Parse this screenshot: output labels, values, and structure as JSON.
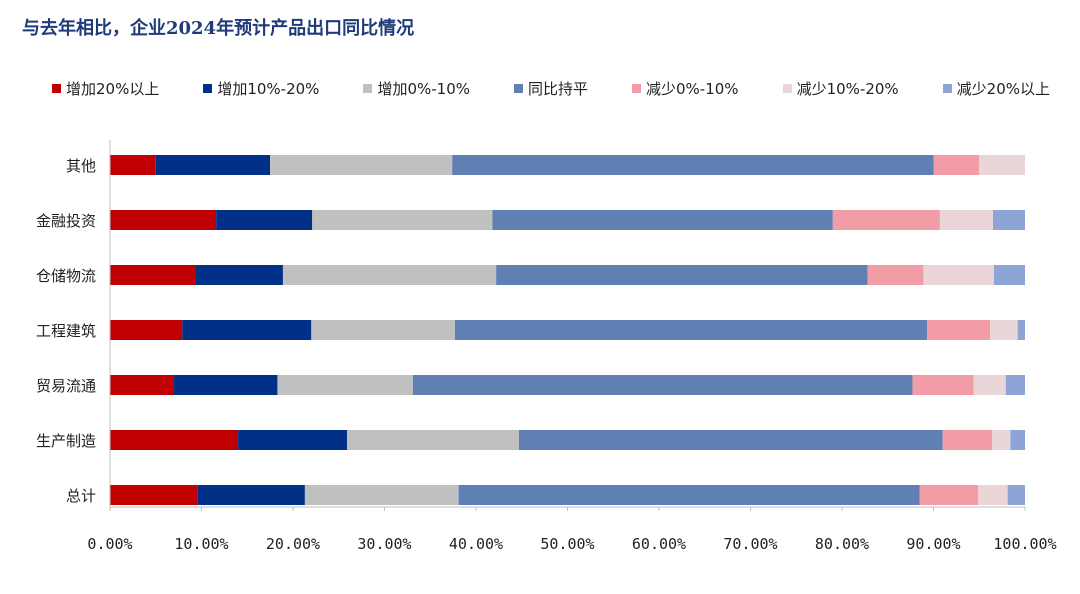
{
  "title": "与去年相比，企业2024年预计产品出口同比情况",
  "chart_data": {
    "type": "bar",
    "orientation": "horizontal",
    "stacked": true,
    "title": "与去年相比，企业2024年预计产品出口同比情况",
    "categories": [
      "其他",
      "金融投资",
      "仓储物流",
      "工程建筑",
      "贸易流通",
      "生产制造",
      "总计"
    ],
    "series": [
      {
        "name": "增加20%以上",
        "color": "#c00000",
        "values": [
          5.0,
          11.6,
          9.4,
          7.9,
          7.0,
          14.0,
          9.6
        ]
      },
      {
        "name": "增加10%-20%",
        "color": "#003087",
        "values": [
          12.5,
          10.5,
          9.5,
          14.1,
          11.3,
          11.9,
          11.7
        ]
      },
      {
        "name": "增加0%-10%",
        "color": "#c0c0c0",
        "values": [
          19.9,
          19.7,
          23.3,
          15.7,
          14.8,
          18.8,
          16.8
        ]
      },
      {
        "name": "同比持平",
        "color": "#6080b4",
        "values": [
          52.6,
          37.2,
          40.6,
          51.6,
          54.6,
          46.3,
          50.4
        ]
      },
      {
        "name": "减少0%-10%",
        "color": "#f19ca6",
        "values": [
          5.0,
          11.7,
          6.1,
          6.9,
          6.7,
          5.4,
          6.4
        ]
      },
      {
        "name": "减少10%-20%",
        "color": "#ead6d9",
        "values": [
          5.0,
          5.8,
          7.7,
          3.0,
          3.5,
          2.0,
          3.2
        ]
      },
      {
        "name": "减少20%以上",
        "color": "#8fa4d6",
        "values": [
          0.0,
          3.5,
          3.4,
          0.8,
          2.1,
          1.6,
          1.9
        ]
      }
    ],
    "xlim": [
      0,
      100
    ],
    "x_ticks": [
      "0.00%",
      "10.00%",
      "20.00%",
      "30.00%",
      "40.00%",
      "50.00%",
      "60.00%",
      "70.00%",
      "80.00%",
      "90.00%",
      "100.00%"
    ],
    "grid": false,
    "legend_position": "top"
  }
}
